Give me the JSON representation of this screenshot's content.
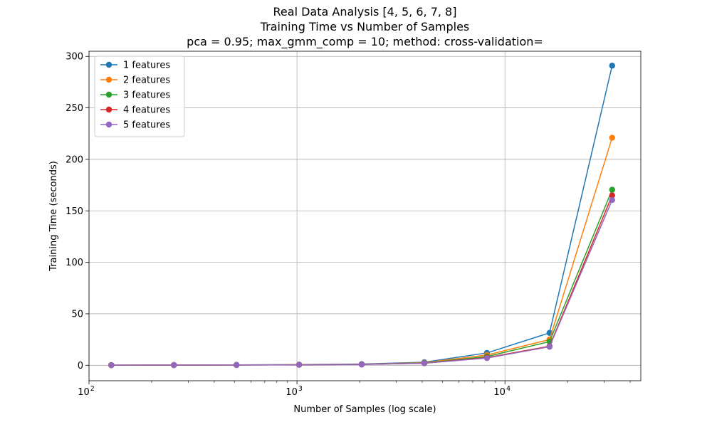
{
  "chart_data": {
    "type": "line",
    "title_lines": [
      "Real Data Analysis [4, 5, 6, 7, 8]",
      "Training Time vs Number of Samples",
      "pca = 0.95; max_gmm_comp = 10; method: cross-validation="
    ],
    "xlabel": "Number of Samples (log scale)",
    "ylabel": "Training Time (seconds)",
    "x_scale": "log",
    "xlim": [
      100,
      45000
    ],
    "ylim": [
      -15,
      305
    ],
    "x_ticks": [
      {
        "value": 100,
        "base": "10",
        "exp": "2"
      },
      {
        "value": 1000,
        "base": "10",
        "exp": "3"
      },
      {
        "value": 10000,
        "base": "10",
        "exp": "4"
      }
    ],
    "y_ticks": [
      0,
      50,
      100,
      150,
      200,
      250,
      300
    ],
    "grid": true,
    "legend_position": "top-left",
    "x": [
      128,
      256,
      512,
      1024,
      2048,
      4096,
      8192,
      16384,
      32768
    ],
    "series": [
      {
        "name": "1 features",
        "color": "#1f77b4",
        "values": [
          0.1,
          0.2,
          0.4,
          0.7,
          1.2,
          3.0,
          12.0,
          31.5,
          291.0
        ]
      },
      {
        "name": "2 features",
        "color": "#ff7f0e",
        "values": [
          0.1,
          0.2,
          0.3,
          0.6,
          1.0,
          2.5,
          10.0,
          25.0,
          221.0
        ]
      },
      {
        "name": "3 features",
        "color": "#2ca02c",
        "values": [
          0.1,
          0.2,
          0.3,
          0.5,
          0.9,
          2.2,
          8.5,
          23.0,
          170.5
        ]
      },
      {
        "name": "4 features",
        "color": "#d62728",
        "values": [
          0.1,
          0.2,
          0.3,
          0.5,
          0.8,
          2.0,
          7.5,
          18.5,
          165.0
        ]
      },
      {
        "name": "5 features",
        "color": "#9467bd",
        "values": [
          0.1,
          0.2,
          0.3,
          0.5,
          0.8,
          2.0,
          7.0,
          18.0,
          160.5
        ]
      }
    ]
  }
}
